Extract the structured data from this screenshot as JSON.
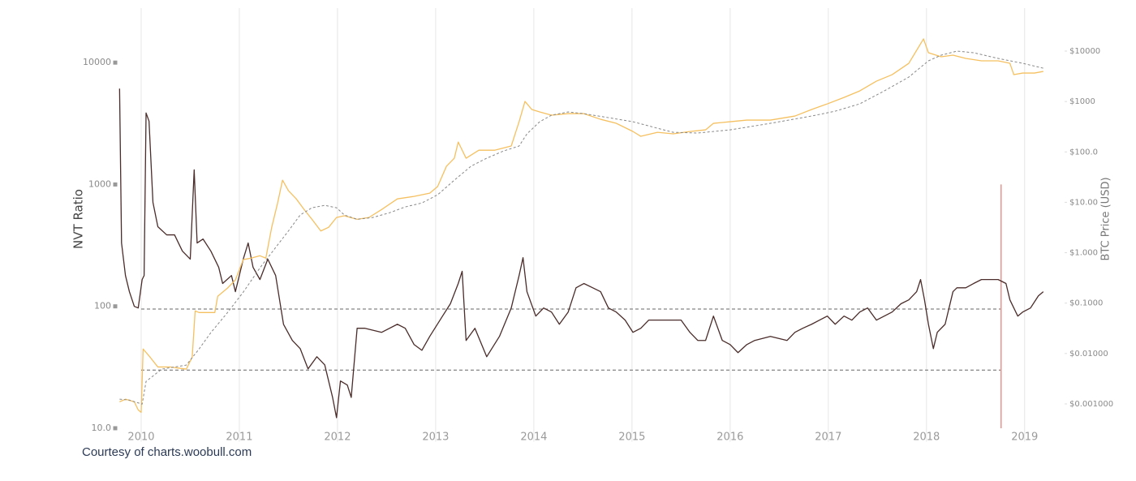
{
  "chart_data": {
    "type": "line",
    "ylabel": "NVT Ratio",
    "y2label": "BTC Price (USD)",
    "annotation": "Courtesy of charts.woobull.com",
    "xlim": [
      2009.72,
      2019.25
    ],
    "xticks": [
      2010,
      2011,
      2012,
      2013,
      2014,
      2015,
      2016,
      2017,
      2018,
      2019
    ],
    "ylim": [
      8,
      28000
    ],
    "yticks": [
      {
        "value": 10,
        "label": "10.0"
      },
      100,
      1000,
      10000
    ],
    "y2lim": [
      0.000192,
      71300
    ],
    "y2ticks": [
      {
        "value": 0.001,
        "label": "$0.001000"
      },
      {
        "value": 0.01,
        "label": "$0.01000"
      },
      {
        "value": 0.1,
        "label": "$0.1000"
      },
      {
        "value": 1,
        "label": "$1.000"
      },
      {
        "value": 10,
        "label": "$10.00"
      },
      {
        "value": 100,
        "label": "$100.0"
      },
      {
        "value": 1000,
        "label": "$1000"
      },
      {
        "value": 10000,
        "label": "$10000"
      }
    ],
    "log_y": true,
    "log_y2": true,
    "grid": "x",
    "series": [
      {
        "color": "#4a2c2a",
        "axis": "y",
        "x": [
          2009.78,
          2009.8,
          2009.84,
          2009.88,
          2009.93,
          2009.97,
          2010.01,
          2010.03,
          2010.05,
          2010.08,
          2010.12,
          2010.17,
          2010.26,
          2010.34,
          2010.42,
          2010.5,
          2010.54,
          2010.57,
          2010.63,
          2010.71,
          2010.79,
          2010.83,
          2010.92,
          2010.96,
          2011.04,
          2011.09,
          2011.14,
          2011.21,
          2011.29,
          2011.37,
          2011.45,
          2011.54,
          2011.62,
          2011.7,
          2011.79,
          2011.87,
          2011.95,
          2011.99,
          2012.03,
          2012.1,
          2012.14,
          2012.2,
          2012.28,
          2012.45,
          2012.61,
          2012.69,
          2012.78,
          2012.86,
          2012.94,
          2013.07,
          2013.15,
          2013.23,
          2013.27,
          2013.31,
          2013.4,
          2013.52,
          2013.65,
          2013.77,
          2013.85,
          2013.89,
          2013.93,
          2014.02,
          2014.1,
          2014.18,
          2014.26,
          2014.35,
          2014.43,
          2014.51,
          2014.6,
          2014.68,
          2014.76,
          2014.84,
          2014.93,
          2015.01,
          2015.09,
          2015.17,
          2015.34,
          2015.5,
          2015.59,
          2015.67,
          2015.75,
          2015.83,
          2015.92,
          2016.0,
          2016.08,
          2016.17,
          2016.25,
          2016.41,
          2016.58,
          2016.66,
          2016.74,
          2016.83,
          2016.91,
          2016.99,
          2017.07,
          2017.16,
          2017.24,
          2017.32,
          2017.4,
          2017.49,
          2017.57,
          2017.65,
          2017.74,
          2017.82,
          2017.9,
          2017.94,
          2017.98,
          2018.02,
          2018.07,
          2018.11,
          2018.19,
          2018.23,
          2018.27,
          2018.31,
          2018.4,
          2018.48,
          2018.56,
          2018.64,
          2018.73,
          2018.81,
          2018.85,
          2018.89,
          2018.93,
          2018.98,
          2019.06,
          2019.14,
          2019.19
        ],
        "values": [
          6120,
          331,
          179,
          132,
          100,
          97,
          166,
          179,
          3860,
          3310,
          713,
          450,
          386,
          386,
          284,
          244,
          1318,
          331,
          357,
          284,
          209,
          154,
          179,
          132,
          244,
          331,
          209,
          166,
          244,
          179,
          71.3,
          52.5,
          45,
          30.7,
          38.6,
          33.1,
          17.9,
          12.2,
          24.4,
          22.6,
          17.9,
          66.1,
          66.1,
          61.2,
          71.3,
          66.1,
          48.6,
          43.6,
          56.7,
          83.2,
          105,
          154,
          194,
          52.5,
          66.1,
          38.6,
          56.7,
          97,
          179,
          251,
          132,
          83.2,
          97,
          89.8,
          71.3,
          89.8,
          142,
          154,
          142,
          132,
          97,
          89.8,
          77.1,
          61.2,
          66.1,
          77.1,
          77.1,
          77.1,
          61.2,
          52.5,
          52.5,
          83.2,
          52.5,
          48.6,
          41.7,
          48.6,
          52.5,
          56.7,
          52.5,
          61.2,
          66.1,
          71.3,
          77.1,
          83.2,
          71.3,
          83.2,
          77.1,
          89.8,
          97,
          77.1,
          83.2,
          89.8,
          105,
          113,
          132,
          166,
          113,
          71.3,
          45,
          61.2,
          71.3,
          97,
          132,
          142,
          142,
          154,
          166,
          166,
          166,
          154,
          113,
          97,
          83.2,
          89.8,
          97,
          122,
          132
        ]
      },
      {
        "color": "#f5c060",
        "axis": "y2",
        "x": [
          2009.78,
          2009.84,
          2009.93,
          2009.97,
          2010.0,
          2010.02,
          2010.09,
          2010.17,
          2010.3,
          2010.46,
          2010.52,
          2010.55,
          2010.59,
          2010.75,
          2010.78,
          2010.88,
          2010.96,
          2011.04,
          2011.12,
          2011.21,
          2011.27,
          2011.33,
          2011.39,
          2011.44,
          2011.5,
          2011.58,
          2011.66,
          2011.74,
          2011.83,
          2011.91,
          2011.99,
          2012.07,
          2012.2,
          2012.32,
          2012.45,
          2012.61,
          2012.78,
          2012.94,
          2013.02,
          2013.11,
          2013.19,
          2013.23,
          2013.31,
          2013.44,
          2013.6,
          2013.77,
          2013.85,
          2013.91,
          2013.98,
          2014.06,
          2014.18,
          2014.35,
          2014.51,
          2014.68,
          2014.84,
          2015.01,
          2015.09,
          2015.26,
          2015.42,
          2015.59,
          2015.75,
          2015.83,
          2016.0,
          2016.17,
          2016.41,
          2016.66,
          2016.83,
          2016.99,
          2017.16,
          2017.32,
          2017.49,
          2017.65,
          2017.82,
          2017.9,
          2017.97,
          2018.02,
          2018.15,
          2018.27,
          2018.4,
          2018.56,
          2018.73,
          2018.85,
          2018.89,
          2018.98,
          2019.1,
          2019.19
        ],
        "values": [
          0.0011,
          0.00124,
          0.0011,
          0.00076,
          0.00068,
          0.0123,
          0.0085,
          0.0054,
          0.0054,
          0.0049,
          0.0085,
          0.07,
          0.065,
          0.065,
          0.137,
          0.199,
          0.288,
          0.73,
          0.78,
          0.87,
          0.78,
          3.2,
          9.7,
          27.5,
          17,
          11.7,
          7.2,
          4.6,
          2.7,
          3.2,
          5.0,
          5.4,
          4.6,
          5.0,
          7.2,
          11.7,
          13.1,
          15.2,
          20.5,
          52,
          75,
          157,
          75,
          108,
          108,
          131,
          397,
          1005,
          693,
          620,
          535,
          575,
          575,
          444,
          369,
          254,
          204,
          245,
          228,
          254,
          274,
          369,
          397,
          428,
          428,
          515,
          693,
          898,
          1206,
          1622,
          2533,
          3410,
          5730,
          10380,
          17460,
          9290,
          7720,
          8310,
          7160,
          6410,
          6410,
          5730,
          3410,
          3670,
          3670,
          3950
        ]
      },
      {
        "color": "#888888",
        "axis": "y2",
        "dashed": true,
        "x": [
          2009.78,
          2009.88,
          2010.01,
          2010.05,
          2010.21,
          2010.46,
          2010.59,
          2010.71,
          2010.88,
          2011.04,
          2011.21,
          2011.37,
          2011.5,
          2011.62,
          2011.74,
          2011.87,
          2011.99,
          2012.07,
          2012.2,
          2012.36,
          2012.53,
          2012.69,
          2012.86,
          2013.02,
          2013.19,
          2013.36,
          2013.52,
          2013.69,
          2013.85,
          2013.93,
          2014.06,
          2014.18,
          2014.35,
          2014.51,
          2014.76,
          2015.01,
          2015.26,
          2015.42,
          2015.67,
          2016.0,
          2016.41,
          2016.83,
          2017.07,
          2017.32,
          2017.57,
          2017.82,
          2018.02,
          2018.15,
          2018.31,
          2018.48,
          2018.73,
          2018.98,
          2019.19
        ],
        "values": [
          0.00124,
          0.00119,
          0.00099,
          0.0028,
          0.0049,
          0.0059,
          0.0123,
          0.026,
          0.065,
          0.165,
          0.5,
          1.27,
          2.7,
          5.6,
          7.8,
          8.7,
          7.8,
          5.6,
          4.6,
          5.0,
          6.2,
          8.1,
          9.7,
          14.1,
          27.5,
          52,
          75,
          104,
          131,
          228,
          397,
          535,
          620,
          575,
          478,
          397,
          295,
          245,
          237,
          274,
          369,
          515,
          643,
          898,
          1622,
          3050,
          6410,
          8310,
          10000,
          9290,
          7160,
          5730,
          4580
        ]
      }
    ],
    "hlines": [
      {
        "value": 95,
        "from": 2010,
        "to": 2018.76,
        "color": "#666666"
      },
      {
        "value": 30,
        "from": 2010,
        "to": 2018.76,
        "color": "#666666"
      }
    ],
    "vlines": [
      {
        "value": 2018.76,
        "from": 10,
        "to": 1000,
        "color": "#e8948a"
      }
    ]
  }
}
